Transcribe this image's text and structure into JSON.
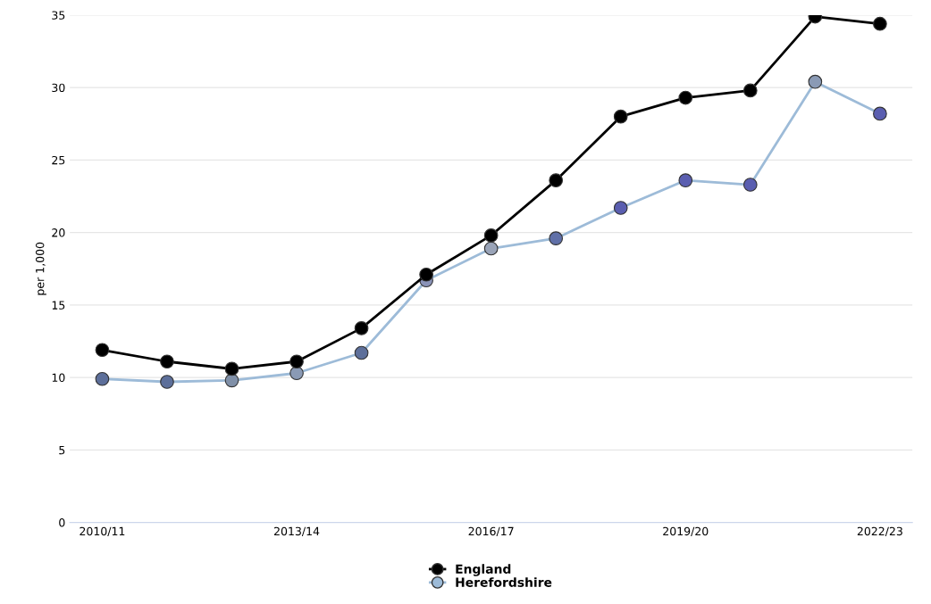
{
  "chart_data": {
    "type": "line",
    "ylabel": "per 1,000",
    "categories": [
      "2010/11",
      null,
      null,
      "2013/14",
      null,
      null,
      "2016/17",
      null,
      null,
      "2019/20",
      null,
      null,
      "2022/23"
    ],
    "series": [
      {
        "name": "England",
        "color": "#000000",
        "values": [
          11.9,
          11.1,
          10.6,
          11.1,
          13.4,
          17.1,
          19.8,
          23.6,
          28.0,
          29.3,
          29.8,
          34.9,
          34.4
        ]
      },
      {
        "name": "Herefordshire",
        "color": "#9dbbd8",
        "colors": [
          "#5d6f9a",
          "#5d6f9a",
          "#8090a8",
          "#8a9ab5",
          "#5d6f9a",
          "#8a93b8",
          "#9aa4b8",
          "#6070a8",
          "#5a5eb0",
          "#5a5eb0",
          "#5a5eb0",
          "#8a9ab5",
          "#5a5eb0"
        ],
        "values": [
          9.9,
          9.7,
          9.8,
          10.3,
          11.7,
          16.7,
          18.9,
          19.6,
          21.7,
          23.6,
          23.3,
          30.4,
          28.2
        ]
      }
    ],
    "ylim": [
      0,
      35
    ],
    "yticks": [
      0,
      5,
      10,
      15,
      20,
      25,
      30,
      35
    ],
    "grid": "y",
    "legend": "bottom",
    "marker": "circle",
    "line_style": "solid"
  }
}
